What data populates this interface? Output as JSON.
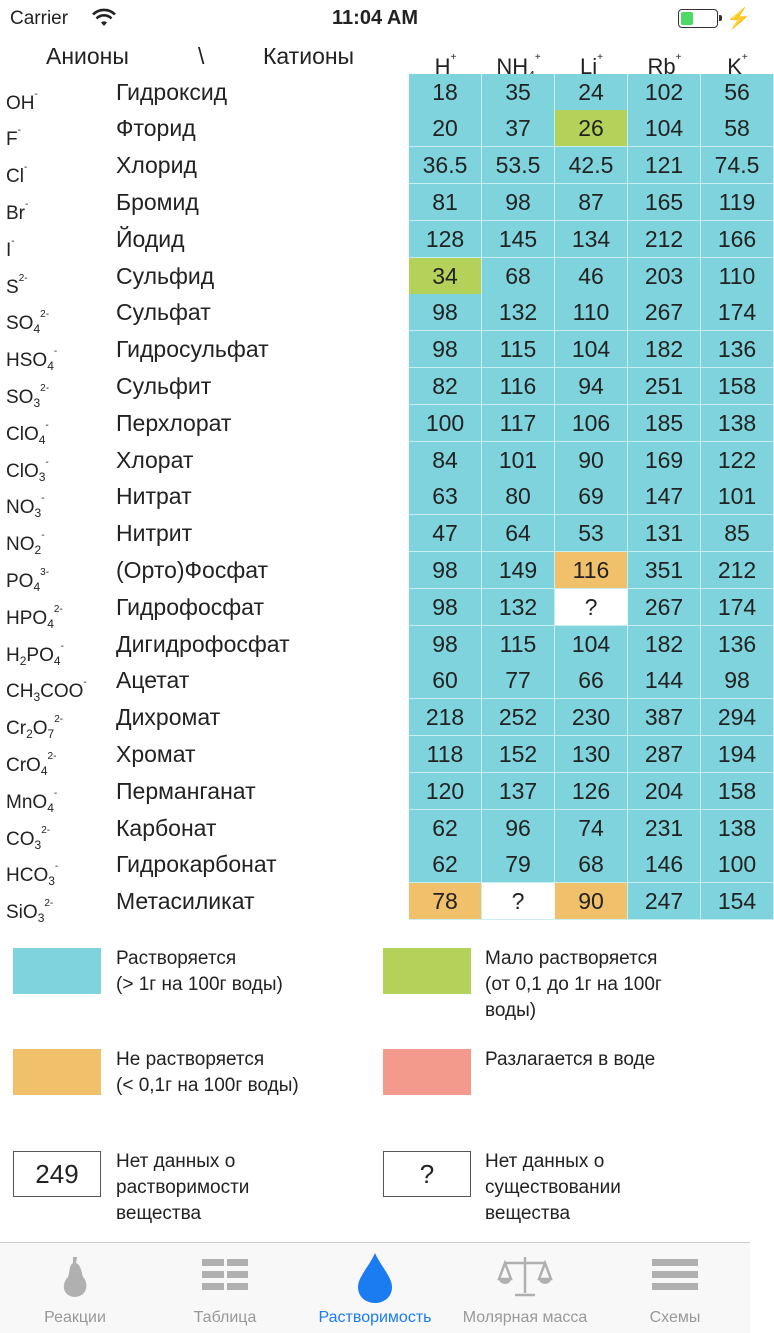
{
  "status_bar": {
    "carrier": "Carrier",
    "time": "11:04 AM"
  },
  "header": {
    "anions": "Анионы",
    "slash": "\\",
    "cations": "Катионы"
  },
  "cations": [
    {
      "base": "H",
      "sub": "",
      "sup": "+"
    },
    {
      "base": "NH",
      "sub": "4",
      "sup": "+"
    },
    {
      "base": "Li",
      "sub": "",
      "sup": "+"
    },
    {
      "base": "Rb",
      "sub": "",
      "sup": "+"
    },
    {
      "base": "K",
      "sub": "",
      "sup": "+"
    }
  ],
  "rows": [
    {
      "formula": [
        {
          "t": "OH"
        },
        {
          "sup": "-"
        }
      ],
      "name": "Гидроксид",
      "cells": [
        [
          "18",
          "sol"
        ],
        [
          "35",
          "sol"
        ],
        [
          "24",
          "sol"
        ],
        [
          "102",
          "sol"
        ],
        [
          "56",
          "sol"
        ]
      ]
    },
    {
      "formula": [
        {
          "t": "F"
        },
        {
          "sup": "-"
        }
      ],
      "name": "Фторид",
      "cells": [
        [
          "20",
          "sol"
        ],
        [
          "37",
          "sol"
        ],
        [
          "26",
          "low"
        ],
        [
          "104",
          "sol"
        ],
        [
          "58",
          "sol"
        ]
      ]
    },
    {
      "formula": [
        {
          "t": "Cl"
        },
        {
          "sup": "-"
        }
      ],
      "name": "Хлорид",
      "cells": [
        [
          "36.5",
          "sol"
        ],
        [
          "53.5",
          "sol"
        ],
        [
          "42.5",
          "sol"
        ],
        [
          "121",
          "sol"
        ],
        [
          "74.5",
          "sol"
        ]
      ]
    },
    {
      "formula": [
        {
          "t": "Br"
        },
        {
          "sup": "-"
        }
      ],
      "name": "Бромид",
      "cells": [
        [
          "81",
          "sol"
        ],
        [
          "98",
          "sol"
        ],
        [
          "87",
          "sol"
        ],
        [
          "165",
          "sol"
        ],
        [
          "119",
          "sol"
        ]
      ]
    },
    {
      "formula": [
        {
          "t": "I"
        },
        {
          "sup": "-"
        }
      ],
      "name": "Йодид",
      "cells": [
        [
          "128",
          "sol"
        ],
        [
          "145",
          "sol"
        ],
        [
          "134",
          "sol"
        ],
        [
          "212",
          "sol"
        ],
        [
          "166",
          "sol"
        ]
      ]
    },
    {
      "formula": [
        {
          "t": "S"
        },
        {
          "sup": "2-"
        }
      ],
      "name": "Сульфид",
      "cells": [
        [
          "34",
          "low"
        ],
        [
          "68",
          "sol"
        ],
        [
          "46",
          "sol"
        ],
        [
          "203",
          "sol"
        ],
        [
          "110",
          "sol"
        ]
      ]
    },
    {
      "formula": [
        {
          "t": "SO"
        },
        {
          "sub": "4"
        },
        {
          "sup": "2-"
        }
      ],
      "name": "Сульфат",
      "cells": [
        [
          "98",
          "sol"
        ],
        [
          "132",
          "sol"
        ],
        [
          "110",
          "sol"
        ],
        [
          "267",
          "sol"
        ],
        [
          "174",
          "sol"
        ]
      ]
    },
    {
      "formula": [
        {
          "t": "HSO"
        },
        {
          "sub": "4"
        },
        {
          "sup": "-"
        }
      ],
      "name": "Гидросульфат",
      "cells": [
        [
          "98",
          "sol"
        ],
        [
          "115",
          "sol"
        ],
        [
          "104",
          "sol"
        ],
        [
          "182",
          "sol"
        ],
        [
          "136",
          "sol"
        ]
      ]
    },
    {
      "formula": [
        {
          "t": "SO"
        },
        {
          "sub": "3"
        },
        {
          "sup": "2-"
        }
      ],
      "name": "Сульфит",
      "cells": [
        [
          "82",
          "sol"
        ],
        [
          "116",
          "sol"
        ],
        [
          "94",
          "sol"
        ],
        [
          "251",
          "sol"
        ],
        [
          "158",
          "sol"
        ]
      ]
    },
    {
      "formula": [
        {
          "t": "ClO"
        },
        {
          "sub": "4"
        },
        {
          "sup": "-"
        }
      ],
      "name": "Перхлорат",
      "cells": [
        [
          "100",
          "sol"
        ],
        [
          "117",
          "sol"
        ],
        [
          "106",
          "sol"
        ],
        [
          "185",
          "sol"
        ],
        [
          "138",
          "sol"
        ]
      ]
    },
    {
      "formula": [
        {
          "t": "ClO"
        },
        {
          "sub": "3"
        },
        {
          "sup": "-"
        }
      ],
      "name": "Хлорат",
      "cells": [
        [
          "84",
          "sol"
        ],
        [
          "101",
          "sol"
        ],
        [
          "90",
          "sol"
        ],
        [
          "169",
          "sol"
        ],
        [
          "122",
          "sol"
        ]
      ]
    },
    {
      "formula": [
        {
          "t": "NO"
        },
        {
          "sub": "3"
        },
        {
          "sup": "-"
        }
      ],
      "name": "Нитрат",
      "cells": [
        [
          "63",
          "sol"
        ],
        [
          "80",
          "sol"
        ],
        [
          "69",
          "sol"
        ],
        [
          "147",
          "sol"
        ],
        [
          "101",
          "sol"
        ]
      ]
    },
    {
      "formula": [
        {
          "t": "NO"
        },
        {
          "sub": "2"
        },
        {
          "sup": "-"
        }
      ],
      "name": "Нитрит",
      "cells": [
        [
          "47",
          "sol"
        ],
        [
          "64",
          "sol"
        ],
        [
          "53",
          "sol"
        ],
        [
          "131",
          "sol"
        ],
        [
          "85",
          "sol"
        ]
      ]
    },
    {
      "formula": [
        {
          "t": "PO"
        },
        {
          "sub": "4"
        },
        {
          "sup": "3-"
        }
      ],
      "name": "(Орто)Фосфат",
      "cells": [
        [
          "98",
          "sol"
        ],
        [
          "149",
          "sol"
        ],
        [
          "116",
          "ins"
        ],
        [
          "351",
          "sol"
        ],
        [
          "212",
          "sol"
        ]
      ]
    },
    {
      "formula": [
        {
          "t": "HPO"
        },
        {
          "sub": "4"
        },
        {
          "sup": "2-"
        }
      ],
      "name": "Гидрофосфат",
      "cells": [
        [
          "98",
          "sol"
        ],
        [
          "132",
          "sol"
        ],
        [
          "?",
          "nd"
        ],
        [
          "267",
          "sol"
        ],
        [
          "174",
          "sol"
        ]
      ]
    },
    {
      "formula": [
        {
          "t": "H"
        },
        {
          "sub": "2"
        },
        {
          "t": "PO"
        },
        {
          "sub": "4"
        },
        {
          "sup": "-"
        }
      ],
      "name": "Дигидрофосфат",
      "cells": [
        [
          "98",
          "sol"
        ],
        [
          "115",
          "sol"
        ],
        [
          "104",
          "sol"
        ],
        [
          "182",
          "sol"
        ],
        [
          "136",
          "sol"
        ]
      ]
    },
    {
      "formula": [
        {
          "t": "CH"
        },
        {
          "sub": "3"
        },
        {
          "t": "COO"
        },
        {
          "sup": "-"
        }
      ],
      "name": "Ацетат",
      "cells": [
        [
          "60",
          "sol"
        ],
        [
          "77",
          "sol"
        ],
        [
          "66",
          "sol"
        ],
        [
          "144",
          "sol"
        ],
        [
          "98",
          "sol"
        ]
      ]
    },
    {
      "formula": [
        {
          "t": "Cr"
        },
        {
          "sub": "2"
        },
        {
          "t": "O"
        },
        {
          "sub": "7"
        },
        {
          "sup": "2-"
        }
      ],
      "name": "Дихромат",
      "cells": [
        [
          "218",
          "sol"
        ],
        [
          "252",
          "sol"
        ],
        [
          "230",
          "sol"
        ],
        [
          "387",
          "sol"
        ],
        [
          "294",
          "sol"
        ]
      ]
    },
    {
      "formula": [
        {
          "t": "CrO"
        },
        {
          "sub": "4"
        },
        {
          "sup": "2-"
        }
      ],
      "name": "Хромат",
      "cells": [
        [
          "118",
          "sol"
        ],
        [
          "152",
          "sol"
        ],
        [
          "130",
          "sol"
        ],
        [
          "287",
          "sol"
        ],
        [
          "194",
          "sol"
        ]
      ]
    },
    {
      "formula": [
        {
          "t": "MnO"
        },
        {
          "sub": "4"
        },
        {
          "sup": "-"
        }
      ],
      "name": "Перманганат",
      "cells": [
        [
          "120",
          "sol"
        ],
        [
          "137",
          "sol"
        ],
        [
          "126",
          "sol"
        ],
        [
          "204",
          "sol"
        ],
        [
          "158",
          "sol"
        ]
      ]
    },
    {
      "formula": [
        {
          "t": "CO"
        },
        {
          "sub": "3"
        },
        {
          "sup": "2-"
        }
      ],
      "name": "Карбонат",
      "cells": [
        [
          "62",
          "sol"
        ],
        [
          "96",
          "sol"
        ],
        [
          "74",
          "sol"
        ],
        [
          "231",
          "sol"
        ],
        [
          "138",
          "sol"
        ]
      ]
    },
    {
      "formula": [
        {
          "t": "HCO"
        },
        {
          "sub": "3"
        },
        {
          "sup": "-"
        }
      ],
      "name": "Гидрокарбонат",
      "cells": [
        [
          "62",
          "sol"
        ],
        [
          "79",
          "sol"
        ],
        [
          "68",
          "sol"
        ],
        [
          "146",
          "sol"
        ],
        [
          "100",
          "sol"
        ]
      ]
    },
    {
      "formula": [
        {
          "t": "SiO"
        },
        {
          "sub": "3"
        },
        {
          "sup": "2-"
        }
      ],
      "name": "Метасиликат",
      "cells": [
        [
          "78",
          "ins"
        ],
        [
          "?",
          "nd"
        ],
        [
          "90",
          "ins"
        ],
        [
          "247",
          "sol"
        ],
        [
          "154",
          "sol"
        ]
      ]
    }
  ],
  "legend": {
    "soluble": {
      "line1": "Растворяется",
      "line2": "(> 1г на 100г воды)",
      "color": "#7fd3dc"
    },
    "slightly": {
      "line1": "Мало растворяется",
      "line2": "(от 0,1 до 1г на 100г",
      "line3": "воды)",
      "color": "#b4d25a"
    },
    "insoluble": {
      "line1": "Не растворяется",
      "line2": "(< 0,1г на 100г воды)",
      "color": "#f0c06a"
    },
    "decomposes": {
      "line1": "Разлагается в воде",
      "color": "#f49a8c"
    },
    "no_solubility": {
      "sample": "249",
      "line1": "Нет данных о",
      "line2": "растворимости",
      "line3": "вещества"
    },
    "no_existence": {
      "sample": "?",
      "line1": "Нет данных о",
      "line2": "существовании",
      "line3": "вещества"
    }
  },
  "tabs": [
    {
      "label": "Реакции",
      "icon": "pear-icon"
    },
    {
      "label": "Таблица",
      "icon": "table-icon"
    },
    {
      "label": "Растворимость",
      "icon": "drop-icon",
      "active": true
    },
    {
      "label": "Молярная масса",
      "icon": "scales-icon"
    },
    {
      "label": "Схемы",
      "icon": "list-icon"
    }
  ]
}
